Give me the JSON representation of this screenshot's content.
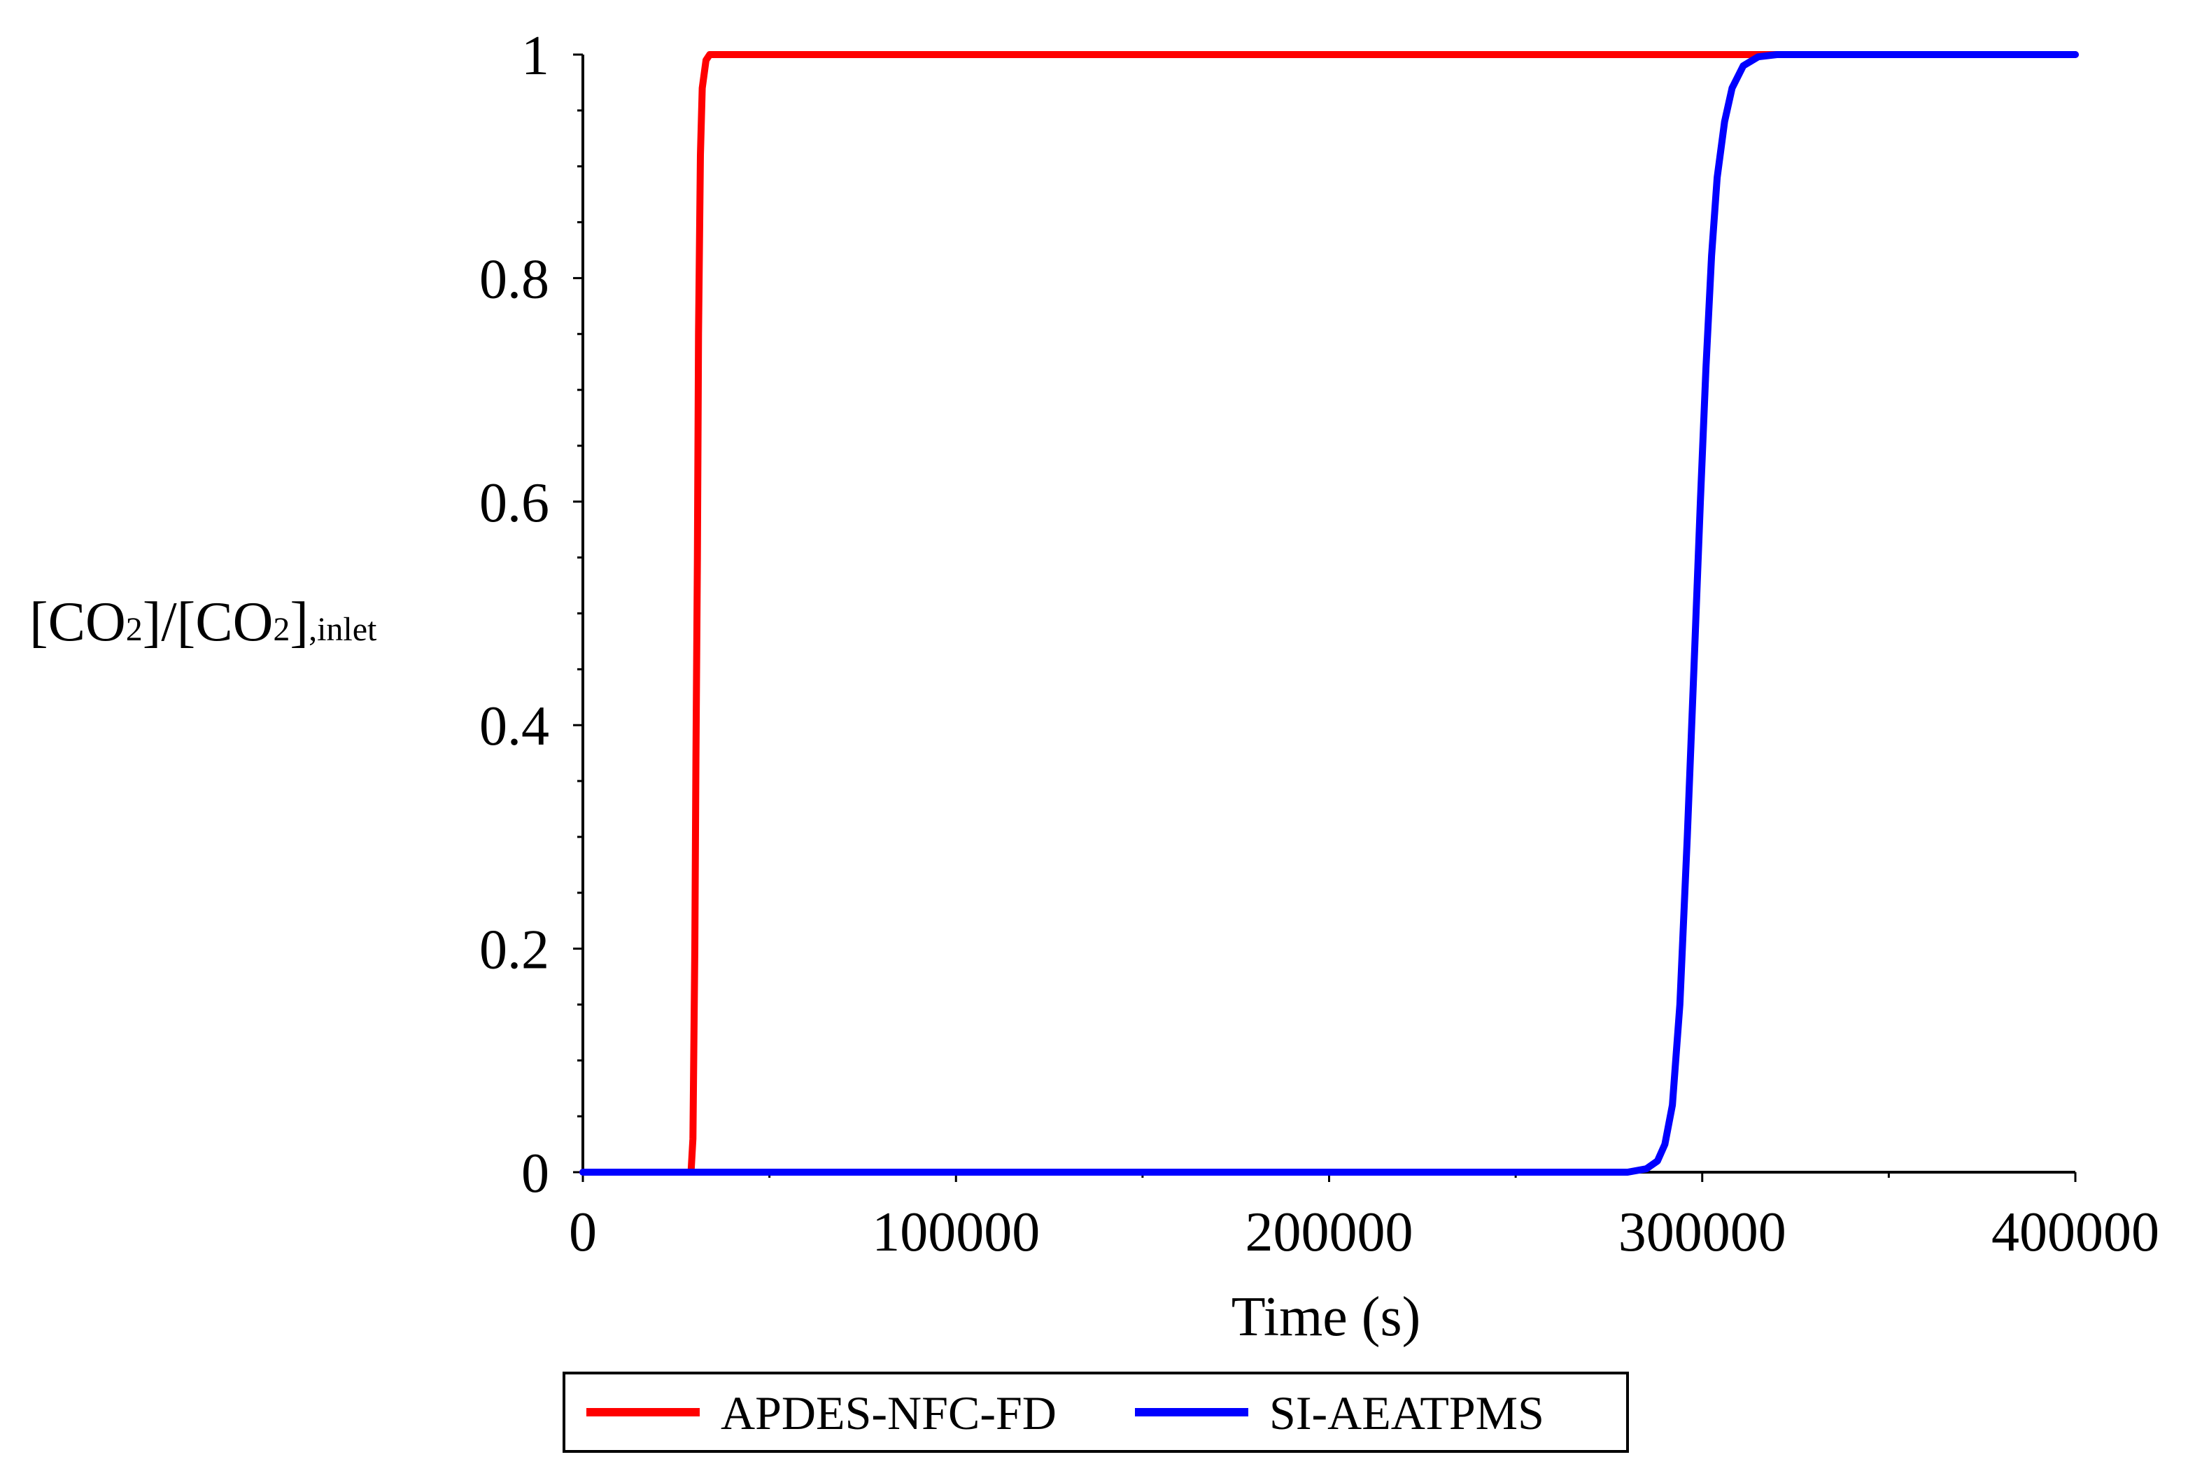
{
  "chart_data": {
    "type": "line",
    "xlabel": "Time (s)",
    "ylabel": {
      "part1": "[CO",
      "sub1": "2",
      "part2": "]/[CO",
      "sub2": "2",
      "part3": "]",
      "sub3": ",inlet"
    },
    "xlim": [
      0,
      400000
    ],
    "ylim": [
      0,
      1
    ],
    "x_ticks": [
      0,
      100000,
      200000,
      300000,
      400000
    ],
    "x_tick_labels": [
      "0",
      "100000",
      "200000",
      "300000",
      "400000"
    ],
    "y_ticks": [
      0,
      0.2,
      0.4,
      0.6,
      0.8,
      1
    ],
    "y_tick_labels": [
      "0",
      "0.2",
      "0.4",
      "0.6",
      "0.8",
      "1"
    ],
    "grid": false,
    "legend_position": "bottom-center",
    "series": [
      {
        "name": "APDES-NFC-FD",
        "color": "#ff0000",
        "x": [
          0,
          28000,
          29000,
          29500,
          30000,
          30300,
          30700,
          31000,
          31500,
          32000,
          33000,
          34000,
          35000,
          37000,
          320000,
          400000
        ],
        "y": [
          0,
          0,
          0,
          0.03,
          0.2,
          0.37,
          0.55,
          0.75,
          0.91,
          0.97,
          0.995,
          1,
          1,
          1,
          1,
          1
        ]
      },
      {
        "name": "SI-AEATPMS",
        "color": "#0000ff",
        "x": [
          0,
          280000,
          285000,
          288000,
          290000,
          292000,
          294000,
          296000,
          298000,
          299500,
          301000,
          302500,
          304000,
          306000,
          308000,
          311000,
          315000,
          320000,
          400000
        ],
        "y": [
          0,
          0,
          0.003,
          0.01,
          0.025,
          0.06,
          0.15,
          0.3,
          0.47,
          0.6,
          0.72,
          0.82,
          0.89,
          0.94,
          0.97,
          0.99,
          0.998,
          1,
          1
        ]
      }
    ]
  }
}
